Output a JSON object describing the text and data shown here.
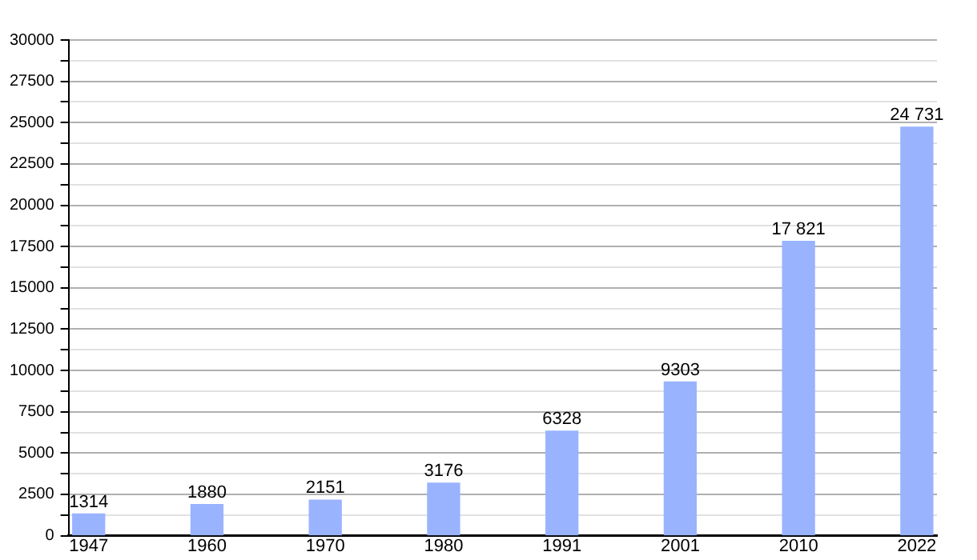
{
  "chart_data": {
    "type": "bar",
    "categories": [
      "1947",
      "1960",
      "1970",
      "1980",
      "1991",
      "2001",
      "2010",
      "2022"
    ],
    "values": [
      1314,
      1880,
      2151,
      3176,
      6328,
      9303,
      17821,
      24731
    ],
    "value_labels": [
      "1314",
      "1880",
      "2151",
      "3176",
      "6328",
      "9303",
      "17 821",
      "24 731"
    ],
    "color": "#99b3ff",
    "ylim": [
      0,
      30000
    ],
    "yticks": [
      0,
      {
        "value": 1250,
        "label": null
      },
      2500,
      {
        "value": 3750,
        "label": null
      },
      5000,
      {
        "value": 6250,
        "label": null
      },
      7500,
      {
        "value": 8750,
        "label": null
      },
      10000,
      {
        "value": 11250,
        "label": null
      },
      12500,
      {
        "value": 13750,
        "label": null
      },
      15000,
      {
        "value": 16250,
        "label": null
      },
      17500,
      {
        "value": 18750,
        "label": null
      },
      20000,
      {
        "value": 21250,
        "label": null
      },
      22500,
      {
        "value": 23750,
        "label": null
      },
      25000,
      {
        "value": 26250,
        "label": null
      },
      27500,
      {
        "value": 28750,
        "label": null
      },
      30000
    ],
    "grid": "y",
    "legend": false
  }
}
